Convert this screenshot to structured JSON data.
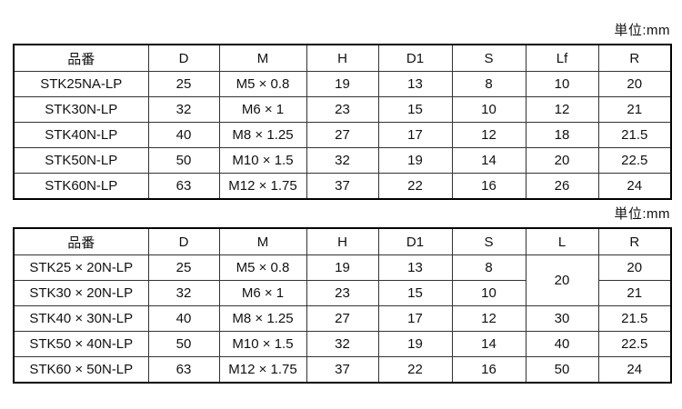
{
  "page": {
    "background_color": "#ffffff",
    "text_color": "#111111",
    "border_color": "#000000"
  },
  "tables": [
    {
      "id": "upper",
      "unit_label": "単位:mm",
      "columns": [
        "品番",
        "D",
        "M",
        "H",
        "D1",
        "S",
        "Lf",
        "R"
      ],
      "rows": [
        [
          "STK25NA-LP",
          "25",
          "M5 × 0.8",
          "19",
          "13",
          "8",
          "10",
          "20"
        ],
        [
          "STK30N-LP",
          "32",
          "M6 × 1",
          "23",
          "15",
          "10",
          "12",
          "21"
        ],
        [
          "STK40N-LP",
          "40",
          "M8 × 1.25",
          "27",
          "17",
          "12",
          "18",
          "21.5"
        ],
        [
          "STK50N-LP",
          "50",
          "M10 × 1.5",
          "32",
          "19",
          "14",
          "20",
          "22.5"
        ],
        [
          "STK60N-LP",
          "63",
          "M12 × 1.75",
          "37",
          "22",
          "16",
          "26",
          "24"
        ]
      ]
    },
    {
      "id": "lower",
      "unit_label": "単位:mm",
      "columns": [
        "品番",
        "D",
        "M",
        "H",
        "D1",
        "S",
        "L",
        "R"
      ],
      "rows": [
        [
          "STK25 × 20N-LP",
          "25",
          "M5 × 0.8",
          "19",
          "13",
          "8",
          {
            "t": "20",
            "rowspan": 2
          },
          "20"
        ],
        [
          "STK30 × 20N-LP",
          "32",
          "M6 × 1",
          "23",
          "15",
          "10",
          null,
          "21"
        ],
        [
          "STK40 × 30N-LP",
          "40",
          "M8 × 1.25",
          "27",
          "17",
          "12",
          "30",
          "21.5"
        ],
        [
          "STK50 × 40N-LP",
          "50",
          "M10 × 1.5",
          "32",
          "19",
          "14",
          "40",
          "22.5"
        ],
        [
          "STK60 × 50N-LP",
          "63",
          "M12 × 1.75",
          "37",
          "22",
          "16",
          "50",
          "24"
        ]
      ]
    }
  ]
}
